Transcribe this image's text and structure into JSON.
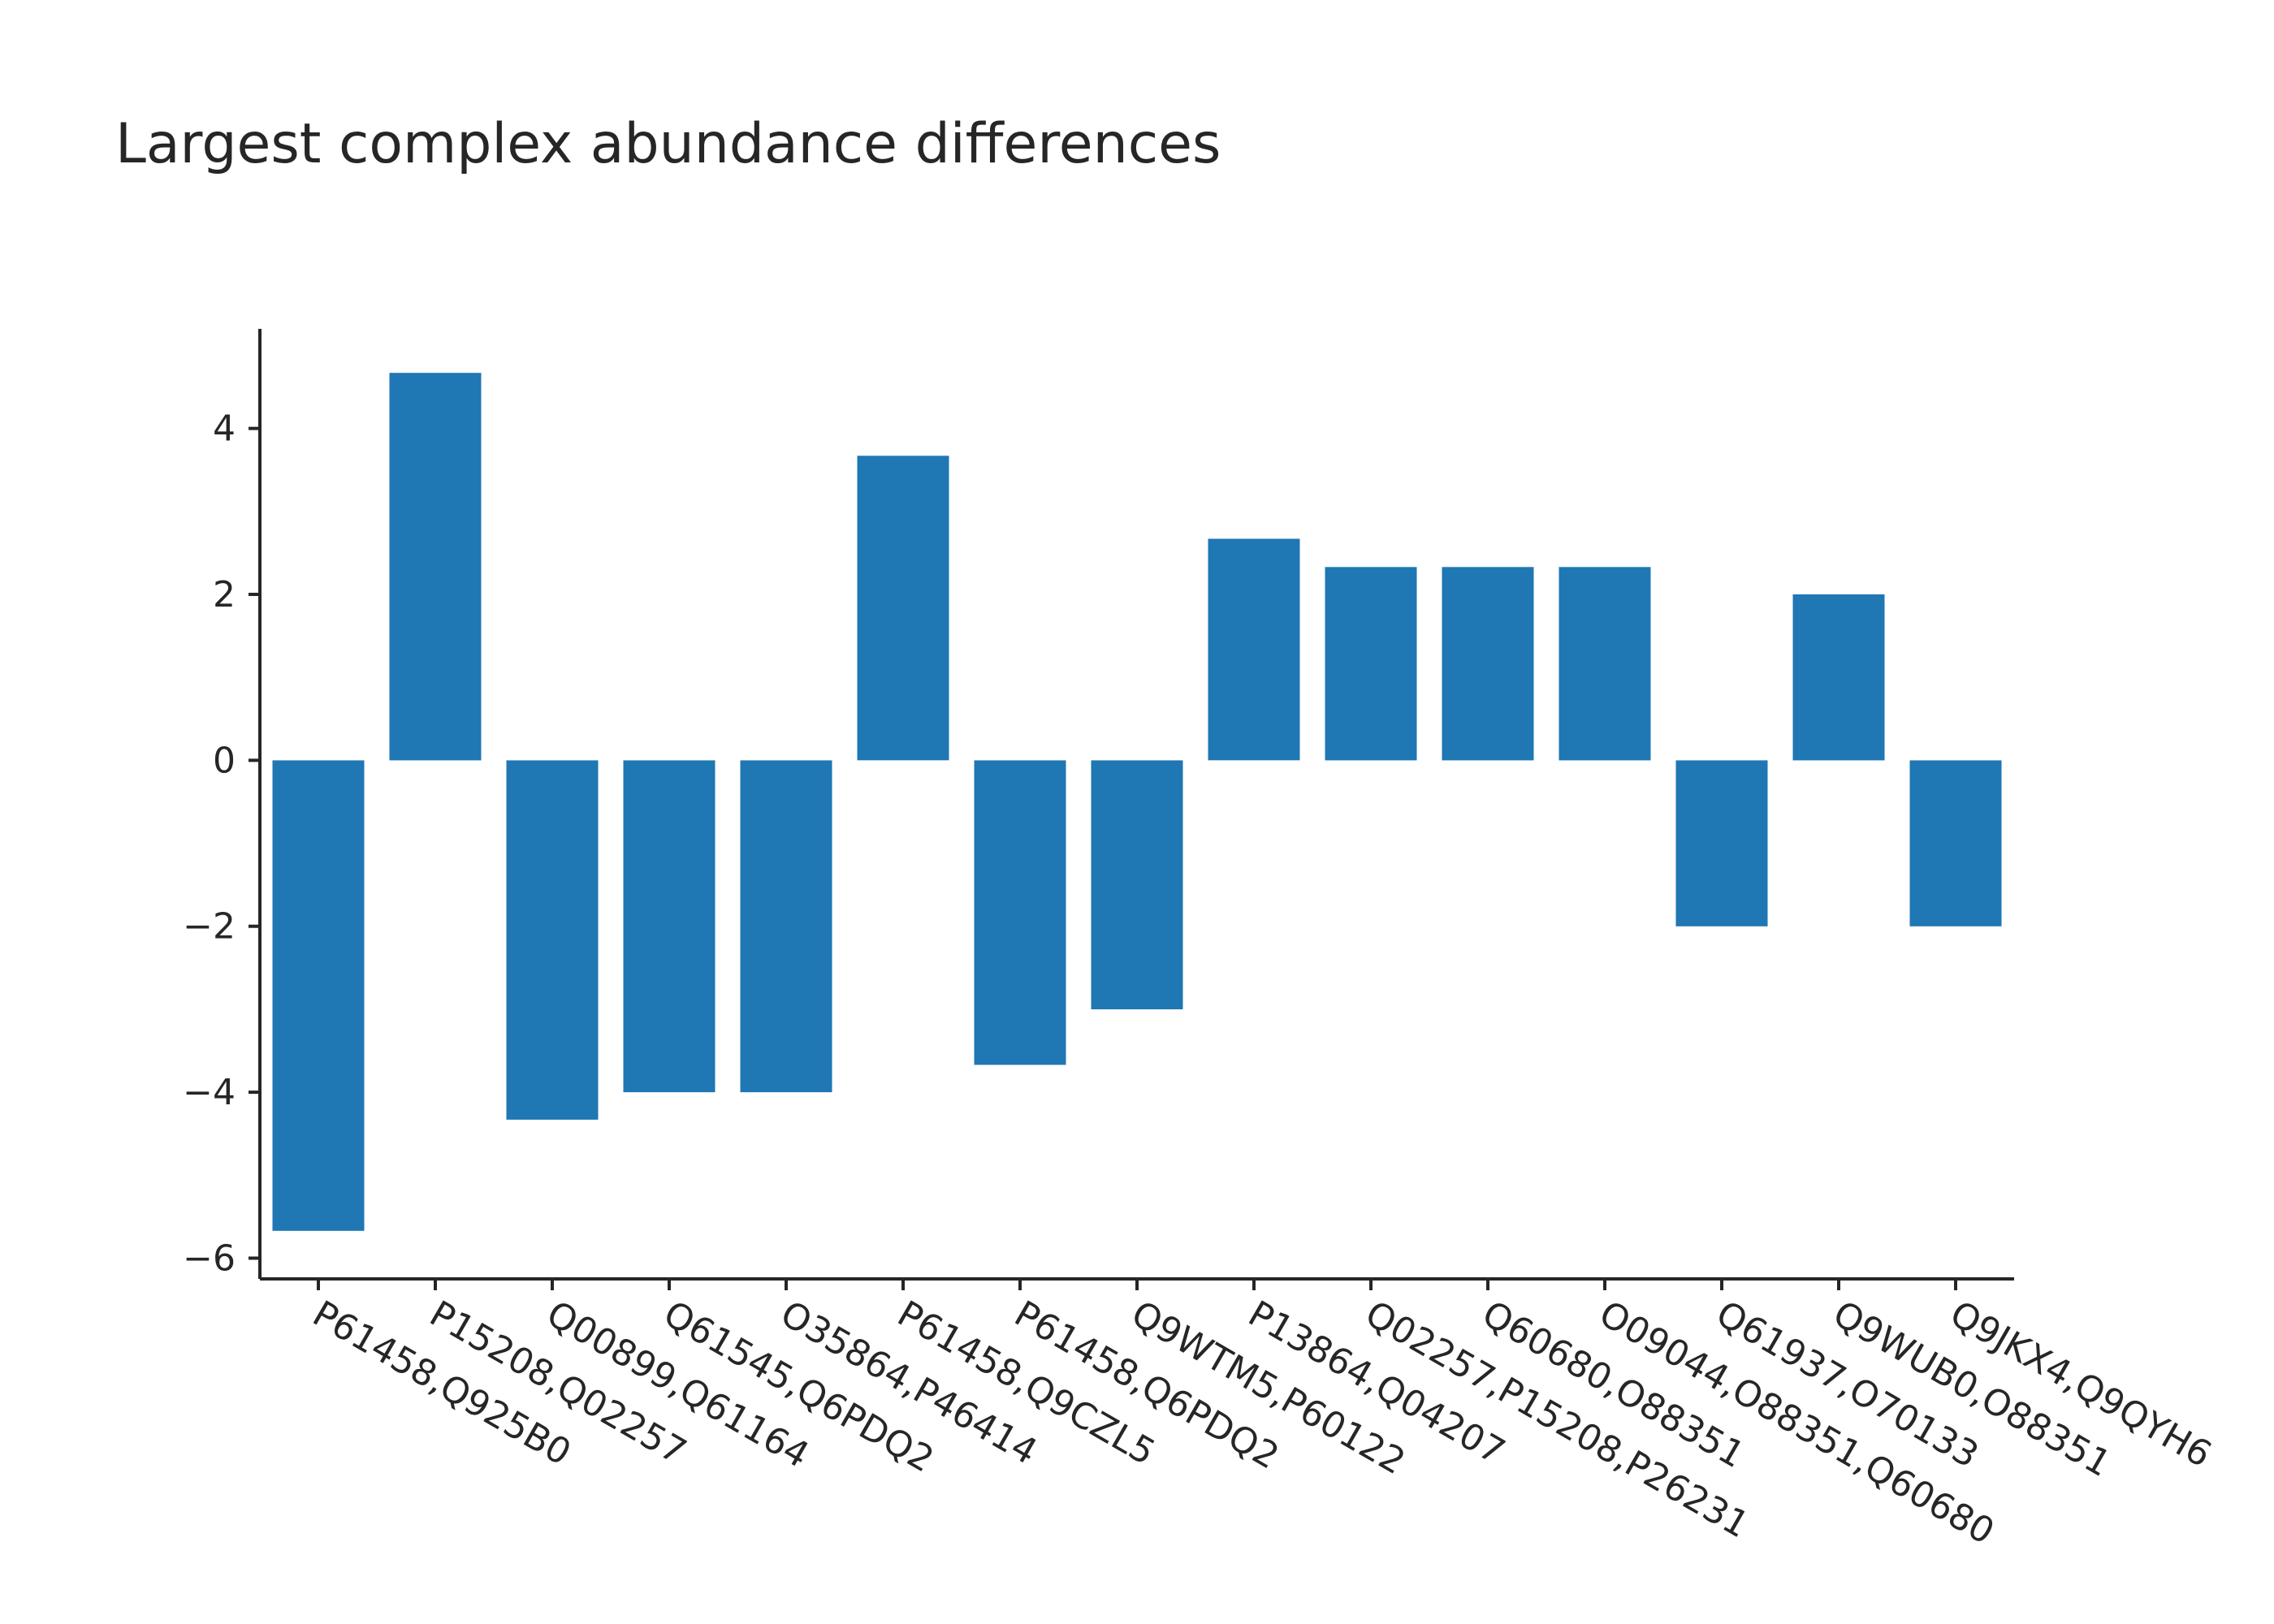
{
  "chart_data": {
    "type": "bar",
    "title": "Largest complex abundance differences",
    "xlabel": "",
    "ylabel": "",
    "categories": [
      "P61458,Q925B0",
      "P15208,Q02257",
      "Q00899,Q61164",
      "Q61545,Q6PDQ2",
      "O35864,P46414",
      "P61458,Q9CZL5",
      "P61458,Q6PDQ2",
      "Q9WTM5,P60122",
      "P13864,Q04207",
      "Q02257,P15208,P26231",
      "Q60680,O88351",
      "O09044,O88351,Q60680",
      "Q61937,O70133",
      "Q9WUB0,O88351",
      "Q9JKX4,Q9QYH6"
    ],
    "values": [
      -5.67,
      4.67,
      -4.33,
      -4.0,
      -4.0,
      3.67,
      -3.67,
      -3.0,
      2.67,
      2.33,
      2.33,
      2.33,
      -2.0,
      2.0,
      -2.0
    ],
    "ylim": [
      -6.25,
      5.2
    ],
    "yticks": [
      {
        "value": 4,
        "label": "4"
      },
      {
        "value": 2,
        "label": "2"
      },
      {
        "value": 0,
        "label": "0"
      },
      {
        "value": -2,
        "label": "−2"
      },
      {
        "value": -4,
        "label": "−4"
      },
      {
        "value": -6,
        "label": "−6"
      }
    ],
    "bar_color": "#1f77b4",
    "grid": false,
    "legend": "none"
  }
}
